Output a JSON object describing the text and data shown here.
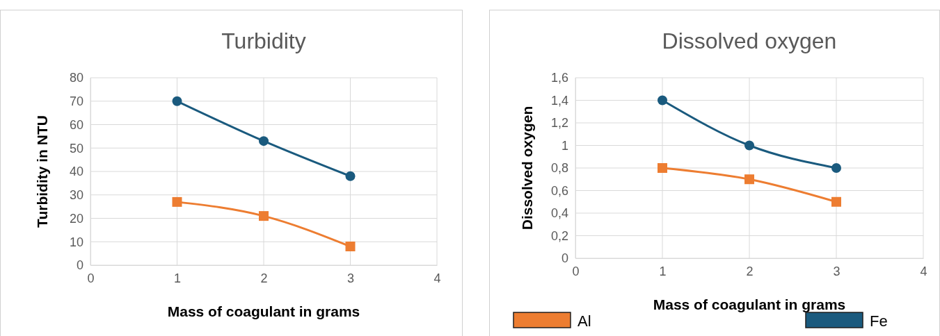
{
  "chart_data": [
    {
      "type": "line",
      "title": "Turbidity",
      "xlabel": "Mass of coagulant in grams",
      "ylabel": "Turbidity in NTU",
      "x": [
        1,
        2,
        3
      ],
      "xlim": [
        0,
        4
      ],
      "xticks": [
        0,
        1,
        2,
        3,
        4
      ],
      "ylim": [
        0,
        80
      ],
      "yticks": [
        0,
        10,
        20,
        30,
        40,
        50,
        60,
        70,
        80
      ],
      "grid": true,
      "legend": false,
      "series": [
        {
          "color": "#1a5a7e",
          "marker": "circle",
          "values": [
            70,
            53,
            38
          ]
        },
        {
          "color": "#ed7d31",
          "marker": "square",
          "values": [
            27,
            21,
            8
          ]
        }
      ]
    },
    {
      "type": "line",
      "title": "Dissolved oxygen",
      "xlabel": "Mass of coagulant in grams",
      "ylabel": "Dissolved oxygen",
      "x": [
        1,
        2,
        3
      ],
      "xlim": [
        0,
        4
      ],
      "xticks": [
        0,
        1,
        2,
        3,
        4
      ],
      "ylim": [
        0,
        1.6
      ],
      "yticks": [
        0,
        {
          "value": 0.2,
          "label": "0,2"
        },
        {
          "value": 0.4,
          "label": "0,4"
        },
        {
          "value": 0.6,
          "label": "0,6"
        },
        {
          "value": 0.8,
          "label": "0,8"
        },
        1,
        {
          "value": 1.2,
          "label": "1,2"
        },
        {
          "value": 1.4,
          "label": "1,4"
        },
        {
          "value": 1.6,
          "label": "1,6"
        }
      ],
      "grid": true,
      "legend": "bottom",
      "series": [
        {
          "name": "Fe",
          "color": "#1a5a7e",
          "marker": "circle",
          "values": [
            1.4,
            1.0,
            0.8
          ]
        },
        {
          "name": "Al",
          "color": "#ed7d31",
          "marker": "square",
          "values": [
            0.8,
            0.7,
            0.5
          ]
        }
      ]
    }
  ]
}
